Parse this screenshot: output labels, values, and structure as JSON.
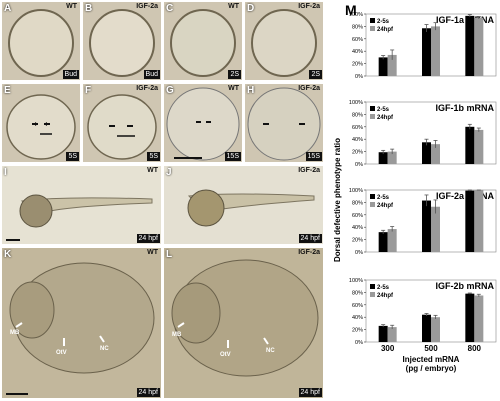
{
  "figure": {
    "panels": [
      {
        "id": "A",
        "condition": "WT",
        "stage": "Bud"
      },
      {
        "id": "B",
        "condition": "IGF-2a",
        "stage": "Bud"
      },
      {
        "id": "C",
        "condition": "WT",
        "stage": "2S"
      },
      {
        "id": "D",
        "condition": "IGF-2a",
        "stage": "2S"
      },
      {
        "id": "E",
        "condition": "",
        "stage": "5S"
      },
      {
        "id": "F",
        "condition": "IGF-2a",
        "stage": "5S"
      },
      {
        "id": "G",
        "condition": "WT",
        "stage": "15S"
      },
      {
        "id": "H",
        "condition": "IGF-2a",
        "stage": "15S"
      },
      {
        "id": "I",
        "condition": "WT",
        "stage": "24 hpf"
      },
      {
        "id": "J",
        "condition": "IGF-2a",
        "stage": "24 hpf"
      },
      {
        "id": "K",
        "condition": "WT",
        "stage": "24 hpf"
      },
      {
        "id": "L",
        "condition": "IGF-2a",
        "stage": "24 hpf"
      }
    ],
    "structure_labels": [
      "MB",
      "OtV",
      "NC"
    ],
    "panel_m_letter": "M",
    "y_axis_label": "Dorsal defective phenotype ratio",
    "x_axis_label_line1": "Injected mRNA",
    "x_axis_label_line2": "(pg / embryo)"
  },
  "chart_data": [
    {
      "type": "bar",
      "title": "IGF-1a mRNA",
      "categories": [
        "300",
        "500",
        "800"
      ],
      "series": [
        {
          "name": "2-5s",
          "values": [
            30,
            77,
            97
          ],
          "errors": [
            3,
            6,
            2
          ]
        },
        {
          "name": "24hpf",
          "values": [
            34,
            80,
            94
          ],
          "errors": [
            8,
            6,
            2
          ]
        }
      ],
      "ylim": [
        0,
        100
      ],
      "yticks": [
        "0%",
        "20%",
        "40%",
        "60%",
        "80%",
        "100%"
      ],
      "legend": "top-left"
    },
    {
      "type": "bar",
      "title": "IGF-1b mRNA",
      "categories": [
        "300",
        "500",
        "800"
      ],
      "series": [
        {
          "name": "2-5s",
          "values": [
            19,
            35,
            60
          ],
          "errors": [
            3,
            5,
            4
          ]
        },
        {
          "name": "24hpf",
          "values": [
            20,
            32,
            55
          ],
          "errors": [
            4,
            6,
            3
          ]
        }
      ],
      "ylim": [
        0,
        100
      ],
      "yticks": [
        "0%",
        "20%",
        "40%",
        "60%",
        "80%",
        "100%"
      ],
      "legend": "top-left"
    },
    {
      "type": "bar",
      "title": "IGF-2a mRNA",
      "categories": [
        "300",
        "500",
        "800"
      ],
      "series": [
        {
          "name": "2-5s",
          "values": [
            32,
            83,
            99
          ],
          "errors": [
            3,
            9,
            1
          ]
        },
        {
          "name": "24hpf",
          "values": [
            37,
            73,
            100
          ],
          "errors": [
            4,
            11,
            0
          ]
        }
      ],
      "ylim": [
        0,
        100
      ],
      "yticks": [
        "0%",
        "20%",
        "40%",
        "60%",
        "80%",
        "100%"
      ],
      "legend": "top-left"
    },
    {
      "type": "bar",
      "title": "IGF-2b mRNA",
      "categories": [
        "300",
        "500",
        "800"
      ],
      "series": [
        {
          "name": "2-5s",
          "values": [
            26,
            44,
            78
          ],
          "errors": [
            2,
            2,
            1
          ]
        },
        {
          "name": "24hpf",
          "values": [
            24,
            40,
            75
          ],
          "errors": [
            3,
            3,
            2
          ]
        }
      ],
      "ylim": [
        0,
        100
      ],
      "yticks": [
        "0%",
        "20%",
        "40%",
        "60%",
        "80%",
        "100%"
      ],
      "legend": "top-left"
    }
  ]
}
